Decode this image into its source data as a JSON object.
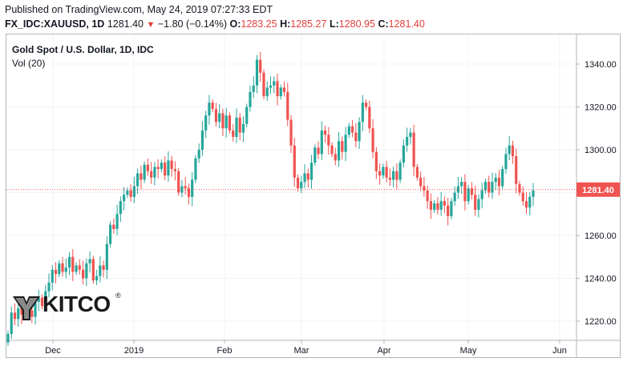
{
  "header": {
    "published": "Published on TradingView.com, May 24, 2019 07:27:33 EDT",
    "symbol": "FX_IDC:XAUUSD, 1D",
    "last": "1281.40",
    "change_arrow": "▼",
    "change": "−1.80 (−0.14%)",
    "open_label": "O:",
    "open": "1283.25",
    "high_label": "H:",
    "high": "1285.27",
    "low_label": "L:",
    "low": "1280.95",
    "close_label": "C:",
    "close": "1281.40"
  },
  "chart_title": "Gold Spot / U.S. Dollar, 1D, IDC",
  "vol_label": "Vol (20)",
  "logo": {
    "text": "KITCO",
    "mark": "®"
  },
  "colors": {
    "up": "#26a69a",
    "down": "#ef5350",
    "grid": "#f0f3fa",
    "price_tag": "#ef5350"
  },
  "chart_data": {
    "type": "candlestick",
    "title": "Gold Spot / U.S. Dollar, 1D, IDC",
    "y_ticks": [
      1220,
      1240,
      1260,
      1280,
      1300,
      1320,
      1340
    ],
    "x_ticks": [
      "Dec",
      "2019",
      "Feb",
      "Mar",
      "Apr",
      "May",
      "Jun"
    ],
    "ylim": [
      1205,
      1348
    ],
    "last_price": 1281.4,
    "last_price_label": "1281.40",
    "closes": [
      1214,
      1224,
      1221,
      1226,
      1223,
      1228,
      1225,
      1222,
      1229,
      1231,
      1227,
      1234,
      1238,
      1244,
      1242,
      1247,
      1243,
      1245,
      1250,
      1243,
      1246,
      1244,
      1240,
      1247,
      1249,
      1239,
      1241,
      1246,
      1244,
      1256,
      1265,
      1263,
      1270,
      1276,
      1279,
      1281,
      1278,
      1283,
      1289,
      1286,
      1293,
      1290,
      1287,
      1292,
      1291,
      1294,
      1288,
      1295,
      1291,
      1290,
      1280,
      1283,
      1282,
      1278,
      1286,
      1296,
      1300,
      1309,
      1316,
      1322,
      1319,
      1313,
      1317,
      1310,
      1316,
      1309,
      1306,
      1315,
      1308,
      1312,
      1320,
      1327,
      1330,
      1342,
      1336,
      1325,
      1329,
      1330,
      1332,
      1325,
      1329,
      1327,
      1314,
      1302,
      1287,
      1282,
      1285,
      1289,
      1286,
      1294,
      1301,
      1298,
      1309,
      1307,
      1302,
      1298,
      1295,
      1304,
      1299,
      1307,
      1311,
      1308,
      1304,
      1313,
      1322,
      1320,
      1310,
      1299,
      1290,
      1288,
      1292,
      1287,
      1286,
      1290,
      1286,
      1294,
      1302,
      1306,
      1308,
      1292,
      1287,
      1283,
      1281,
      1276,
      1272,
      1275,
      1272,
      1276,
      1274,
      1269,
      1276,
      1280,
      1283,
      1285,
      1276,
      1282,
      1279,
      1272,
      1277,
      1281,
      1285,
      1280,
      1285,
      1287,
      1283,
      1291,
      1298,
      1302,
      1297,
      1284,
      1280,
      1276,
      1273,
      1278,
      1281
    ],
    "last_close": 1281.4
  }
}
